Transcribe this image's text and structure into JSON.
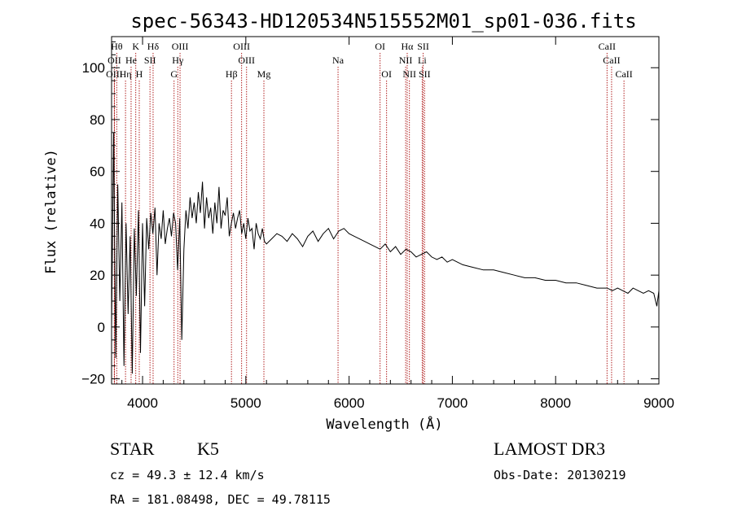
{
  "chart_data": {
    "type": "line",
    "title": "spec-56343-HD120534N515552M01_sp01-036.fits",
    "xlabel": "Wavelength (Å)",
    "ylabel": "Flux (relative)",
    "xlim": [
      3700,
      9000
    ],
    "ylim": [
      -22,
      112
    ],
    "x_ticks": [
      4000,
      5000,
      6000,
      7000,
      8000,
      9000
    ],
    "y_ticks": [
      -20,
      0,
      20,
      40,
      60,
      80,
      100
    ],
    "series": [
      {
        "name": "flux",
        "x": [
          3700,
          3720,
          3740,
          3760,
          3780,
          3800,
          3820,
          3840,
          3860,
          3880,
          3900,
          3920,
          3940,
          3960,
          3980,
          4000,
          4020,
          4040,
          4060,
          4080,
          4100,
          4120,
          4140,
          4160,
          4180,
          4200,
          4220,
          4240,
          4260,
          4280,
          4300,
          4320,
          4340,
          4360,
          4380,
          4400,
          4420,
          4440,
          4460,
          4480,
          4500,
          4520,
          4540,
          4560,
          4580,
          4600,
          4620,
          4640,
          4660,
          4680,
          4700,
          4720,
          4740,
          4760,
          4780,
          4800,
          4820,
          4840,
          4860,
          4880,
          4900,
          4920,
          4940,
          4960,
          4980,
          5000,
          5020,
          5040,
          5060,
          5080,
          5100,
          5120,
          5140,
          5160,
          5180,
          5200,
          5250,
          5300,
          5350,
          5400,
          5450,
          5500,
          5550,
          5600,
          5650,
          5700,
          5750,
          5800,
          5850,
          5900,
          5950,
          6000,
          6050,
          6100,
          6150,
          6200,
          6250,
          6300,
          6350,
          6400,
          6450,
          6500,
          6550,
          6600,
          6650,
          6700,
          6750,
          6800,
          6850,
          6900,
          6950,
          7000,
          7100,
          7200,
          7300,
          7400,
          7500,
          7600,
          7700,
          7800,
          7900,
          8000,
          8100,
          8200,
          8300,
          8400,
          8500,
          8550,
          8600,
          8650,
          8700,
          8750,
          8800,
          8850,
          8900,
          8950,
          8980,
          9000
        ],
        "values": [
          0,
          75,
          -12,
          55,
          10,
          48,
          -15,
          40,
          5,
          35,
          -18,
          38,
          12,
          45,
          -10,
          40,
          8,
          42,
          30,
          44,
          36,
          46,
          20,
          40,
          34,
          45,
          32,
          38,
          42,
          35,
          44,
          40,
          22,
          42,
          -5,
          30,
          45,
          38,
          50,
          42,
          48,
          40,
          52,
          44,
          56,
          38,
          50,
          42,
          46,
          36,
          48,
          40,
          54,
          38,
          45,
          43,
          50,
          35,
          40,
          44,
          38,
          42,
          45,
          36,
          40,
          34,
          42,
          37,
          38,
          30,
          40,
          36,
          34,
          38,
          33,
          32,
          34,
          36,
          35,
          33,
          36,
          34,
          31,
          35,
          37,
          33,
          36,
          38,
          34,
          37,
          38,
          36,
          35,
          34,
          33,
          32,
          31,
          30,
          32,
          29,
          31,
          28,
          30,
          29,
          27,
          28,
          29,
          27,
          26,
          27,
          25,
          26,
          24,
          23,
          22,
          22,
          21,
          20,
          19,
          19,
          18,
          18,
          17,
          17,
          16,
          15,
          15,
          14,
          15,
          14,
          13,
          15,
          14,
          13,
          14,
          13,
          8,
          14
        ]
      }
    ],
    "line_marks": [
      {
        "label": "Hθ",
        "x": 3750,
        "row": 1
      },
      {
        "label": "OII",
        "x": 3727,
        "row": 2
      },
      {
        "label": "OIII",
        "x": 3727,
        "row": 3
      },
      {
        "label": "K",
        "x": 3934,
        "row": 1
      },
      {
        "label": "He",
        "x": 3889,
        "row": 2
      },
      {
        "label": "Hη",
        "x": 3835,
        "row": 3
      },
      {
        "label": "SII",
        "x": 4072,
        "row": 2
      },
      {
        "label": "H",
        "x": 3968,
        "row": 3
      },
      {
        "label": "Hδ",
        "x": 4102,
        "row": 1
      },
      {
        "label": "OIII",
        "x": 4363,
        "row": 1
      },
      {
        "label": "Hγ",
        "x": 4341,
        "row": 2
      },
      {
        "label": "G",
        "x": 4305,
        "row": 3
      },
      {
        "label": "OIII",
        "x": 4959,
        "row": 1
      },
      {
        "label": "OIII",
        "x": 5007,
        "row": 2
      },
      {
        "label": "Hβ",
        "x": 4861,
        "row": 3
      },
      {
        "label": "Mg",
        "x": 5175,
        "row": 3
      },
      {
        "label": "Na",
        "x": 5893,
        "row": 2
      },
      {
        "label": "OI",
        "x": 6300,
        "row": 1
      },
      {
        "label": "OI",
        "x": 6363,
        "row": 3
      },
      {
        "label": "Hα",
        "x": 6563,
        "row": 1
      },
      {
        "label": "SII",
        "x": 6717,
        "row": 1
      },
      {
        "label": "NII",
        "x": 6548,
        "row": 2
      },
      {
        "label": "Li",
        "x": 6708,
        "row": 2
      },
      {
        "label": "NII",
        "x": 6584,
        "row": 3
      },
      {
        "label": "SII",
        "x": 6731,
        "row": 3
      },
      {
        "label": "CaII",
        "x": 8498,
        "row": 1
      },
      {
        "label": "CaII",
        "x": 8542,
        "row": 2
      },
      {
        "label": "CaII",
        "x": 8662,
        "row": 3
      }
    ],
    "line_color": "#b22222",
    "curve_color": "#000000"
  },
  "info": {
    "class_label": "STAR",
    "subclass": "K5",
    "survey": "LAMOST DR3",
    "cz": "cz = 49.3 ± 12.4 km/s",
    "obs_date": "Obs-Date: 20130219",
    "coords": "RA = 181.08498, DEC =  49.78115"
  }
}
